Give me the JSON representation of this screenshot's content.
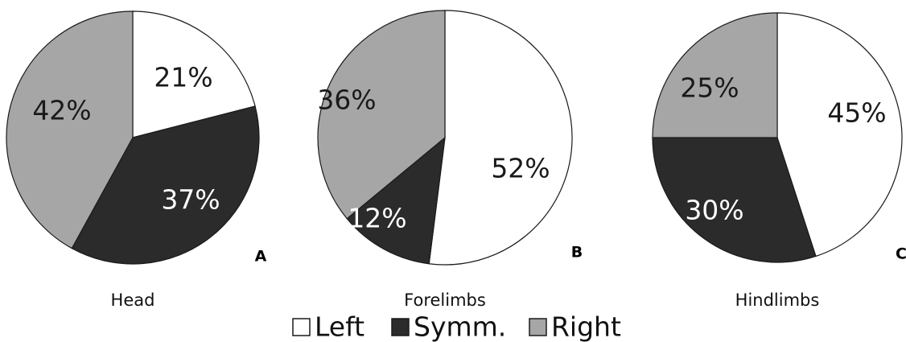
{
  "colors": {
    "Left": "#ffffff",
    "Symm.": "#2b2b2b",
    "Right": "#a6a6a6",
    "label_on_light": "#1a1a1a",
    "label_on_dark": "#ffffff"
  },
  "chart_data": [
    {
      "type": "pie",
      "title": "Head",
      "panel": "A",
      "slices": [
        {
          "name": "Left",
          "value": 21,
          "label": "21%"
        },
        {
          "name": "Symm.",
          "value": 37,
          "label": "37%"
        },
        {
          "name": "Right",
          "value": 42,
          "label": "42%"
        }
      ]
    },
    {
      "type": "pie",
      "title": "Forelimbs",
      "panel": "B",
      "slices": [
        {
          "name": "Left",
          "value": 52,
          "label": "52%"
        },
        {
          "name": "Symm.",
          "value": 12,
          "label": "12%"
        },
        {
          "name": "Right",
          "value": 36,
          "label": "36%"
        }
      ]
    },
    {
      "type": "pie",
      "title": "Hindlimbs",
      "panel": "C",
      "slices": [
        {
          "name": "Left",
          "value": 45,
          "label": "45%"
        },
        {
          "name": "Symm.",
          "value": 30,
          "label": "30%"
        },
        {
          "name": "Right",
          "value": 25,
          "label": "25%"
        }
      ]
    }
  ],
  "legend": [
    {
      "name": "Left",
      "label": "Left"
    },
    {
      "name": "Symm.",
      "label": "Symm."
    },
    {
      "name": "Right",
      "label": "Right"
    }
  ]
}
